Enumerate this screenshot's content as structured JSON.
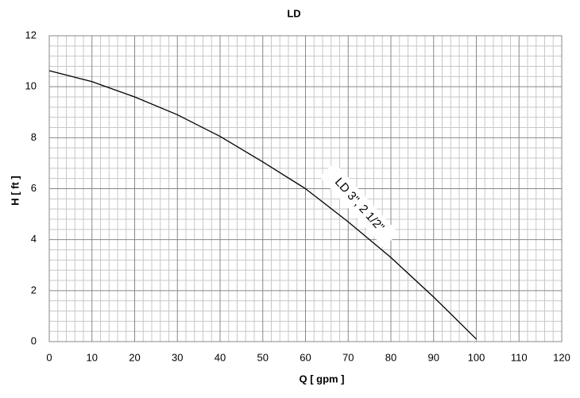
{
  "chart_data": {
    "type": "line",
    "title": "LD",
    "xlabel": "Q [ gpm ]",
    "ylabel": "H [ ft ]",
    "x": [
      0,
      10,
      20,
      30,
      40,
      50,
      60,
      70,
      80,
      90,
      100
    ],
    "series": [
      {
        "name": "LD 3\", 2 1/2\"",
        "color": "#000000",
        "values": [
          10.63,
          10.2,
          9.6,
          8.9,
          8.05,
          7.05,
          6.0,
          4.7,
          3.3,
          1.75,
          0.1
        ]
      }
    ],
    "xlim": [
      0,
      120
    ],
    "xticks": [
      0,
      10,
      20,
      30,
      40,
      50,
      60,
      70,
      80,
      90,
      100,
      110,
      120
    ],
    "ylim": [
      0,
      12
    ],
    "yticks": [
      0,
      2,
      4,
      6,
      8,
      10,
      12
    ],
    "grid": true
  }
}
